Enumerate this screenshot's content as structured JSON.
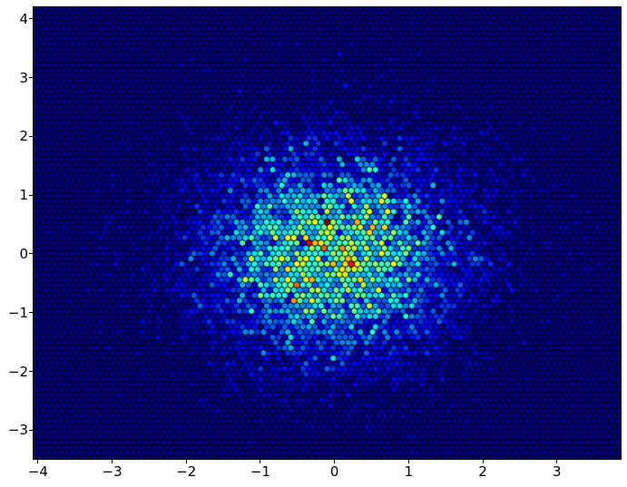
{
  "figure": {
    "background_color": "#ffffff",
    "frame_color": "#000000"
  },
  "chart_data": {
    "type": "hexbin",
    "title": "",
    "xlabel": "",
    "ylabel": "",
    "xlim": [
      -4.06,
      3.86
    ],
    "ylim": [
      -3.49,
      4.2
    ],
    "xticks": [
      {
        "value": -4,
        "label": "−4"
      },
      {
        "value": -3,
        "label": "−3"
      },
      {
        "value": -2,
        "label": "−2"
      },
      {
        "value": -1,
        "label": "−1"
      },
      {
        "value": 0,
        "label": "0"
      },
      {
        "value": 1,
        "label": "1"
      },
      {
        "value": 2,
        "label": "2"
      },
      {
        "value": 3,
        "label": "3"
      }
    ],
    "yticks": [
      {
        "value": -3,
        "label": "−3"
      },
      {
        "value": -2,
        "label": "−2"
      },
      {
        "value": -1,
        "label": "−1"
      },
      {
        "value": 0,
        "label": "0"
      },
      {
        "value": 1,
        "label": "1"
      },
      {
        "value": 2,
        "label": "2"
      },
      {
        "value": 3,
        "label": "3"
      },
      {
        "value": 4,
        "label": "4"
      }
    ],
    "grid": false,
    "legend": false,
    "colormap": "jet",
    "colormap_stops": [
      [
        0.0,
        [
          0,
          0,
          128
        ]
      ],
      [
        0.125,
        [
          0,
          0,
          255
        ]
      ],
      [
        0.375,
        [
          0,
          255,
          255
        ]
      ],
      [
        0.625,
        [
          255,
          255,
          0
        ]
      ],
      [
        0.875,
        [
          255,
          0,
          0
        ]
      ],
      [
        1.0,
        [
          128,
          0,
          0
        ]
      ]
    ],
    "plot_background_color": "#000000",
    "zero_count_color": "#000080",
    "hex_gridsize_x": 97,
    "distribution": {
      "kind": "bivariate-normal",
      "mean": [
        0,
        0
      ],
      "std": [
        1,
        1
      ],
      "n_points": 10000,
      "seed": 7
    },
    "tick_color": "#000000",
    "tick_label_color": "#000000"
  }
}
